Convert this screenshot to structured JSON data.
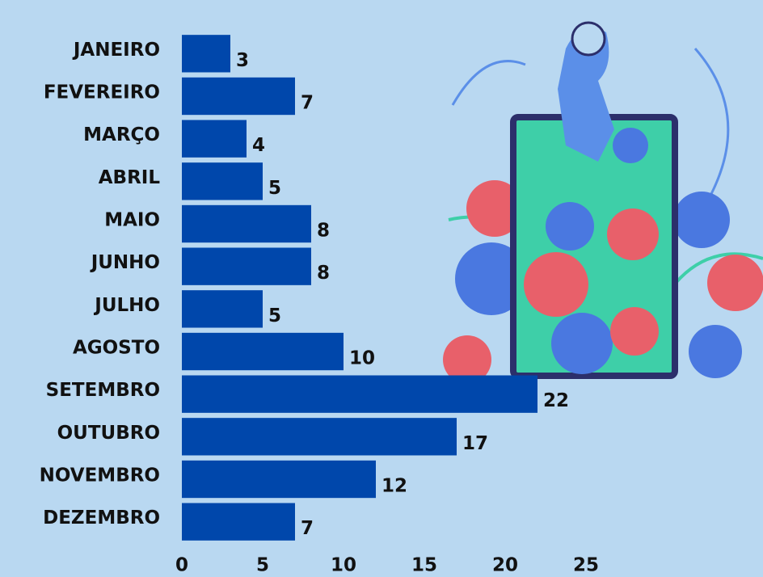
{
  "chart_data": {
    "type": "bar",
    "orientation": "horizontal",
    "categories": [
      "JANEIRO",
      "FEVEREIRO",
      "MARÇO",
      "ABRIL",
      "MAIO",
      "JUNHO",
      "JULHO",
      "AGOSTO",
      "SETEMBRO",
      "OUTUBRO",
      "NOVEMBRO",
      "DEZEMBRO"
    ],
    "values": [
      3,
      7,
      4,
      5,
      8,
      8,
      5,
      10,
      22,
      17,
      12,
      7
    ],
    "color": "#0047ab",
    "xlim": [
      0,
      25
    ],
    "xticks": [
      0,
      5,
      10,
      15,
      20,
      25
    ],
    "grid": false
  }
}
